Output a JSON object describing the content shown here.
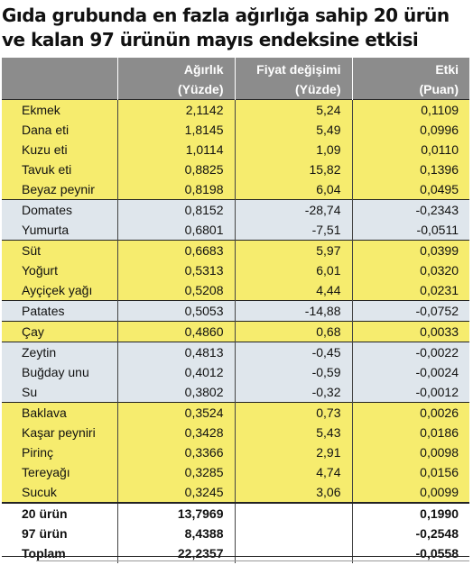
{
  "title": {
    "line1": "Gıda grubunda en fazla ağırlığa sahip 20 ürün",
    "line2": "ve kalan 97 ürünün mayıs endeksine etkisi"
  },
  "headers": {
    "col2": {
      "line1": "Ağırlık",
      "line2": "(Yüzde)"
    },
    "col3": {
      "line1": "Fiyat değişimi",
      "line2": "(Yüzde)"
    },
    "col4": {
      "line1": "Etki",
      "line2": "(Puan)"
    }
  },
  "rows": [
    {
      "name": "Ekmek",
      "weight": "2,1142",
      "change": "5,24",
      "effect": "0,1109"
    },
    {
      "name": "Dana eti",
      "weight": "1,8145",
      "change": "5,49",
      "effect": "0,0996"
    },
    {
      "name": "Kuzu eti",
      "weight": "1,0114",
      "change": "1,09",
      "effect": "0,0110"
    },
    {
      "name": "Tavuk eti",
      "weight": "0,8825",
      "change": "15,82",
      "effect": "0,1396"
    },
    {
      "name": "Beyaz peynir",
      "weight": "0,8198",
      "change": "6,04",
      "effect": "0,0495"
    },
    {
      "name": "Domates",
      "weight": "0,8152",
      "change": "-28,74",
      "effect": "-0,2343"
    },
    {
      "name": "Yumurta",
      "weight": "0,6801",
      "change": "-7,51",
      "effect": "-0,0511"
    },
    {
      "name": "Süt",
      "weight": "0,6683",
      "change": "5,97",
      "effect": "0,0399"
    },
    {
      "name": "Yoğurt",
      "weight": "0,5313",
      "change": "6,01",
      "effect": "0,0320"
    },
    {
      "name": "Ayçiçek yağı",
      "weight": "0,5208",
      "change": "4,44",
      "effect": "0,0231"
    },
    {
      "name": "Patates",
      "weight": "0,5053",
      "change": "-14,88",
      "effect": "-0,0752"
    },
    {
      "name": "Çay",
      "weight": "0,4860",
      "change": "0,68",
      "effect": "0,0033"
    },
    {
      "name": "Zeytin",
      "weight": "0,4813",
      "change": "-0,45",
      "effect": "-0,0022"
    },
    {
      "name": "Buğday unu",
      "weight": "0,4012",
      "change": "-0,59",
      "effect": "-0,0024"
    },
    {
      "name": "Su",
      "weight": "0,3802",
      "change": "-0,32",
      "effect": "-0,0012"
    },
    {
      "name": "Baklava",
      "weight": "0,3524",
      "change": "0,73",
      "effect": "0,0026"
    },
    {
      "name": "Kaşar peyniri",
      "weight": "0,3428",
      "change": "5,43",
      "effect": "0,0186"
    },
    {
      "name": "Pirinç",
      "weight": "0,3366",
      "change": "2,91",
      "effect": "0,0098"
    },
    {
      "name": "Tereyağı",
      "weight": "0,3285",
      "change": "4,74",
      "effect": "0,0156"
    },
    {
      "name": "Sucuk",
      "weight": "0,3245",
      "change": "3,06",
      "effect": "0,0099"
    }
  ],
  "totals": [
    {
      "name": "20 ürün",
      "weight": "13,7969",
      "change": "",
      "effect": "0,1990"
    },
    {
      "name": "97 ürün",
      "weight": "8,4388",
      "change": "",
      "effect": "-0,2548"
    },
    {
      "name": "Toplam",
      "weight": "22,2357",
      "change": "",
      "effect": "-0,0558"
    }
  ],
  "colors": {
    "header_bg": "#8c8c8c",
    "yellow_row": "#f6ec6e",
    "blue_row": "#dfe6ec"
  }
}
